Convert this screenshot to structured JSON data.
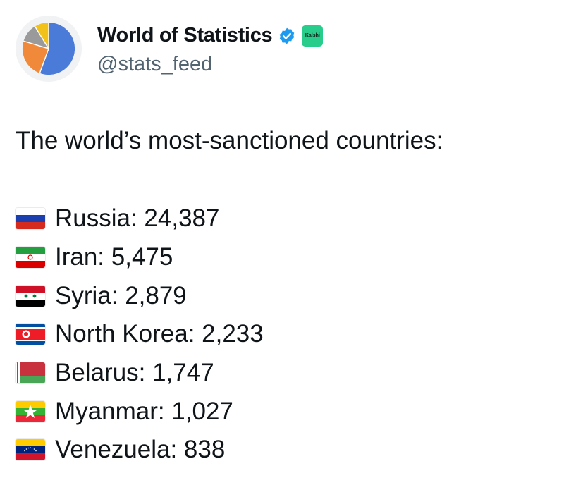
{
  "account": {
    "display_name": "World of Statistics",
    "handle": "@stats_feed",
    "affiliate_badge": "Kalshi",
    "verified": true,
    "colors": {
      "verified": "#1d9bf0",
      "affiliate": "#28cc8b"
    }
  },
  "avatar": {
    "icon": "pie-chart-icon",
    "colors": [
      "#4a7bd8",
      "#f08a3a",
      "#9a9a9a",
      "#f2c21b"
    ]
  },
  "post": {
    "headline": "The world’s most-sanctioned countries:",
    "items": [
      {
        "flag": "russia-flag-icon",
        "text": "Russia: 24,387"
      },
      {
        "flag": "iran-flag-icon",
        "text": "Iran: 5,475"
      },
      {
        "flag": "syria-flag-icon",
        "text": "Syria: 2,879"
      },
      {
        "flag": "north-korea-flag-icon",
        "text": "North Korea: 2,233"
      },
      {
        "flag": "belarus-flag-icon",
        "text": "Belarus: 1,747"
      },
      {
        "flag": "myanmar-flag-icon",
        "text": "Myanmar: 1,027"
      },
      {
        "flag": "venezuela-flag-icon",
        "text": "Venezuela: 838"
      }
    ]
  }
}
